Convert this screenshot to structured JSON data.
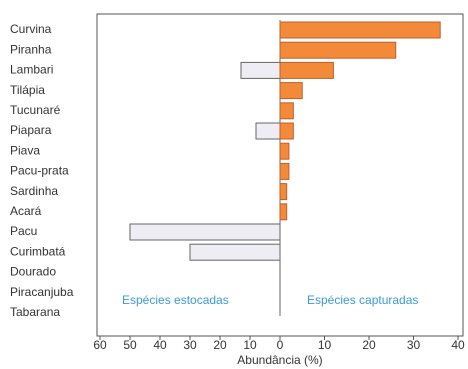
{
  "chart_data": {
    "type": "diverging-bar",
    "categories": [
      "Curvina",
      "Piranha",
      "Lambari",
      "Tilápia",
      "Tucunaré",
      "Piapara",
      "Piava",
      "Pacu-prata",
      "Sardinha",
      "Acará",
      "Pacu",
      "Curimbatá",
      "Dourado",
      "Piracanjuba",
      "Tabarana"
    ],
    "series": [
      {
        "name": "Espécies estocadas",
        "color": "#ededf3",
        "axis": "x",
        "values": [
          null,
          null,
          13,
          null,
          null,
          8,
          null,
          null,
          null,
          null,
          50,
          30,
          null,
          null,
          null
        ]
      },
      {
        "name": "Espécies capturadas",
        "color": "#f28a3a",
        "axis": "x2",
        "values": [
          36,
          26,
          12,
          5,
          3,
          3,
          2,
          2,
          1.5,
          1.5,
          null,
          null,
          null,
          null,
          null
        ]
      }
    ],
    "xlim": [
      60,
      0
    ],
    "xticks": [
      60,
      50,
      40,
      30,
      20,
      10,
      0
    ],
    "x2lim": [
      0,
      40
    ],
    "x2ticks": [
      10,
      20,
      30,
      40
    ],
    "xlabel": "Abundância (%)"
  }
}
